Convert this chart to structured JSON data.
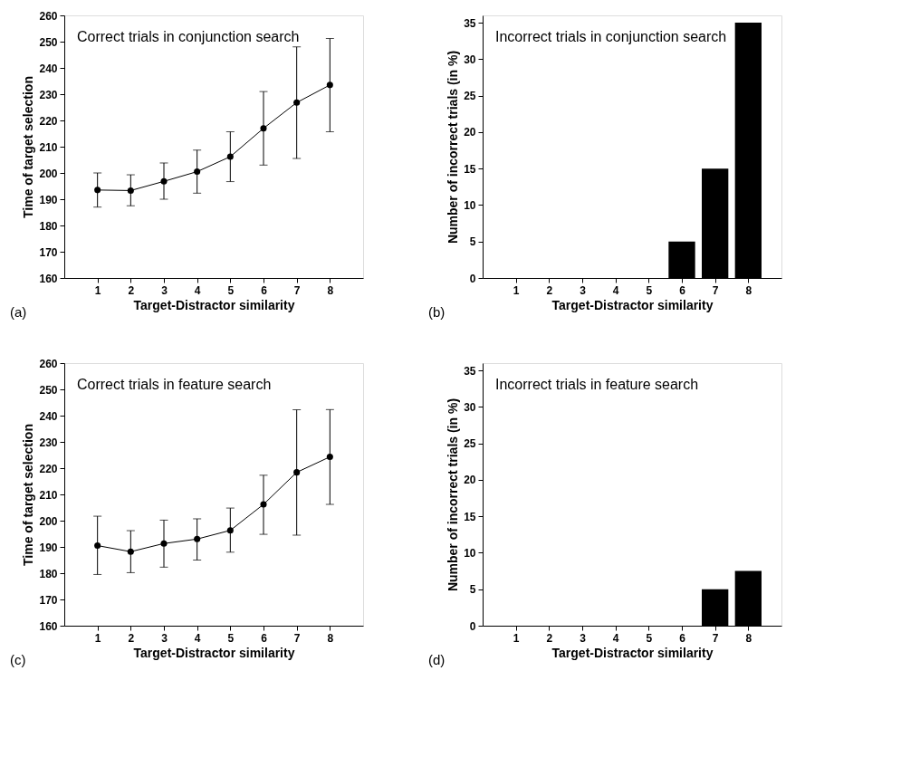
{
  "chart_data": [
    {
      "type": "line",
      "title": "Correct trials in conjunction search",
      "xlabel": "Target-Distractor similarity",
      "ylabel": "Time of target selection",
      "annotations": [
        "(a)"
      ],
      "x": [
        1,
        2,
        3,
        4,
        5,
        6,
        7,
        8
      ],
      "values": [
        193.5,
        193.3,
        196.8,
        200.5,
        206.2,
        217,
        226.8,
        233.5
      ],
      "errors": [
        [
          187,
          200
        ],
        [
          187.5,
          199.3
        ],
        [
          190,
          203.8
        ],
        [
          192.3,
          208.7
        ],
        [
          196.7,
          215.7
        ],
        [
          203,
          231
        ],
        [
          205.5,
          248
        ],
        [
          215.7,
          251.2
        ]
      ],
      "color": "#000000",
      "marker": "circle",
      "line_style": "solid",
      "grid": false,
      "xlim": [
        0,
        9
      ],
      "xticks": [
        1,
        2,
        3,
        4,
        5,
        6,
        7,
        8
      ],
      "ylim": [
        160,
        260
      ],
      "yticks": [
        160,
        170,
        180,
        190,
        200,
        210,
        220,
        230,
        240,
        250,
        260
      ]
    },
    {
      "type": "bar",
      "title": "Incorrect trials in conjunction search",
      "xlabel": "Target-Distractor similarity",
      "ylabel": "Number of incorrect trials (in %)",
      "annotations": [
        "(b)"
      ],
      "x": [
        1,
        2,
        3,
        4,
        5,
        6,
        7,
        8
      ],
      "values": [
        0,
        0,
        0,
        0,
        0,
        5,
        15,
        35
      ],
      "color": "#000000",
      "grid": false,
      "xlim": [
        0,
        9
      ],
      "xticks": [
        1,
        2,
        3,
        4,
        5,
        6,
        7,
        8
      ],
      "ylim": [
        0,
        36
      ],
      "yticks": [
        0,
        5,
        10,
        15,
        20,
        25,
        30,
        35
      ]
    },
    {
      "type": "line",
      "title": "Correct trials in feature search",
      "xlabel": "Target-Distractor similarity",
      "ylabel": "Time of target selection",
      "annotations": [
        "(c)"
      ],
      "x": [
        1,
        2,
        3,
        4,
        5,
        6,
        7,
        8
      ],
      "values": [
        190.5,
        188.2,
        191.3,
        193,
        196.3,
        206.2,
        218.4,
        224.3
      ],
      "errors": [
        [
          179.5,
          201.7
        ],
        [
          180.2,
          196.2
        ],
        [
          182.3,
          200.2
        ],
        [
          185,
          200.7
        ],
        [
          188,
          204.8
        ],
        [
          194.8,
          217.3
        ],
        [
          194.5,
          242.2
        ],
        [
          206.2,
          242.3
        ]
      ],
      "color": "#000000",
      "marker": "circle",
      "line_style": "solid",
      "grid": false,
      "xlim": [
        0,
        9
      ],
      "xticks": [
        1,
        2,
        3,
        4,
        5,
        6,
        7,
        8
      ],
      "ylim": [
        160,
        260
      ],
      "yticks": [
        160,
        170,
        180,
        190,
        200,
        210,
        220,
        230,
        240,
        250,
        260
      ]
    },
    {
      "type": "bar",
      "title": "Incorrect trials in feature search",
      "xlabel": "Target-Distractor similarity",
      "ylabel": "Number of incorrect trials (in %)",
      "annotations": [
        "(d)"
      ],
      "x": [
        1,
        2,
        3,
        4,
        5,
        6,
        7,
        8
      ],
      "values": [
        0,
        0,
        0,
        0,
        0,
        0,
        5,
        7.5
      ],
      "color": "#000000",
      "grid": false,
      "xlim": [
        0,
        9
      ],
      "xticks": [
        1,
        2,
        3,
        4,
        5,
        6,
        7,
        8
      ],
      "ylim": [
        0,
        36
      ],
      "yticks": [
        0,
        5,
        10,
        15,
        20,
        25,
        30,
        35
      ]
    }
  ]
}
